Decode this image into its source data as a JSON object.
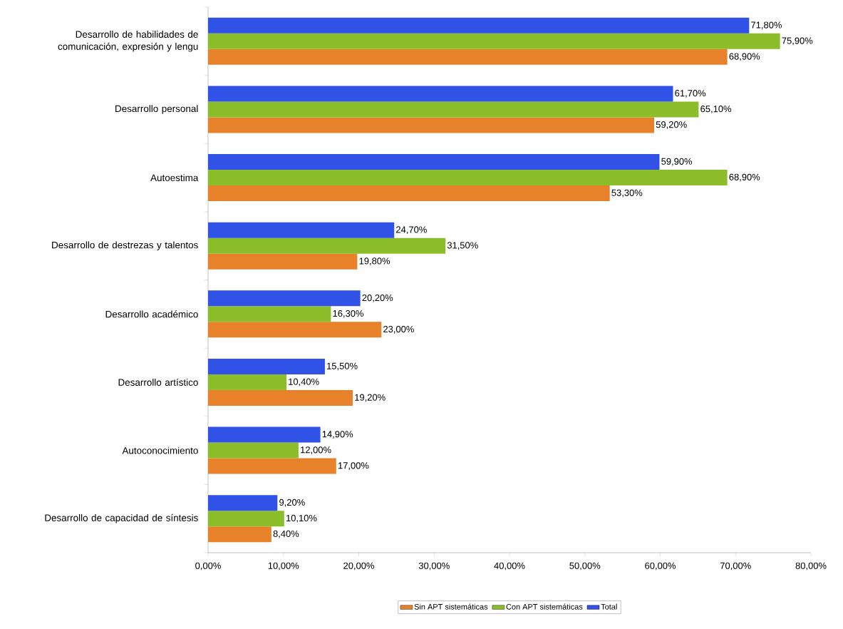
{
  "chart_data": {
    "type": "bar",
    "orientation": "horizontal",
    "categories": [
      "Desarrollo de habilidades de comunicación, expresión y lengu",
      "Desarrollo personal",
      "Autoestima",
      "Desarrollo de destrezas y talentos",
      "Desarrollo académico",
      "Desarrollo artístico",
      "Autoconocimiento",
      "Desarrollo de capacidad de síntesis"
    ],
    "series": [
      {
        "name": "Sin APT sistemáticas",
        "color": "#e8822a",
        "values": [
          68.9,
          59.2,
          53.3,
          19.8,
          23.0,
          19.2,
          17.0,
          8.4
        ],
        "value_labels": [
          "68,90%",
          "59,20%",
          "53,30%",
          "19,80%",
          "23,00%",
          "19,20%",
          "17,00%",
          "8,40%"
        ]
      },
      {
        "name": "Con APT sistemáticas",
        "color": "#8cbd2a",
        "values": [
          75.9,
          65.1,
          68.9,
          31.5,
          16.3,
          10.4,
          12.0,
          10.1
        ],
        "value_labels": [
          "75,90%",
          "65,10%",
          "68,90%",
          "31,50%",
          "16,30%",
          "10,40%",
          "12,00%",
          "10,10%"
        ]
      },
      {
        "name": "Total",
        "color": "#3152e6",
        "values": [
          71.8,
          61.7,
          59.9,
          24.7,
          20.2,
          15.5,
          14.9,
          9.2
        ],
        "value_labels": [
          "71,80%",
          "61,70%",
          "59,90%",
          "24,70%",
          "20,20%",
          "15,50%",
          "14,90%",
          "9,20%"
        ]
      }
    ],
    "xlim": [
      0,
      80
    ],
    "xticks": [
      {
        "value": 0,
        "label": "0,00%"
      },
      {
        "value": 10,
        "label": "10,00%"
      },
      {
        "value": 20,
        "label": "20,00%"
      },
      {
        "value": 30,
        "label": "30,00%"
      },
      {
        "value": 40,
        "label": "40,00%"
      },
      {
        "value": 50,
        "label": "50,00%"
      },
      {
        "value": 60,
        "label": "60,00%"
      },
      {
        "value": 70,
        "label": "70,00%"
      },
      {
        "value": 80,
        "label": "80,00%"
      }
    ],
    "legend": "bottom"
  }
}
